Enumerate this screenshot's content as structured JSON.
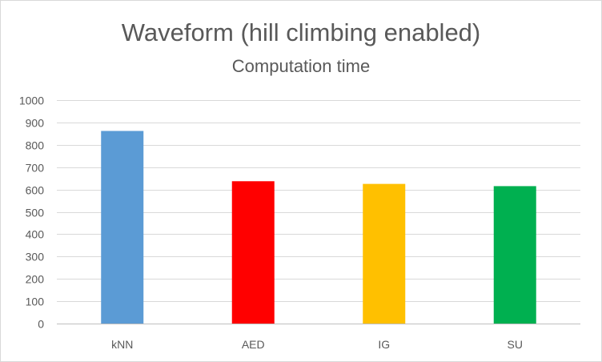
{
  "chart_data": {
    "type": "bar",
    "title": "Waveform (hill climbing enabled)",
    "subtitle": "Computation time",
    "categories": [
      "kNN",
      "AED",
      "IG",
      "SU"
    ],
    "values": [
      862,
      637,
      625,
      615
    ],
    "colors": [
      "#5b9bd5",
      "#ff0000",
      "#ffc000",
      "#00b050"
    ],
    "ylim": [
      0,
      1000
    ],
    "ytick_step": 100,
    "yticks": [
      "0",
      "100",
      "200",
      "300",
      "400",
      "500",
      "600",
      "700",
      "800",
      "900",
      "1000"
    ],
    "grid": true,
    "legend": "none",
    "xlabel": "",
    "ylabel": ""
  }
}
